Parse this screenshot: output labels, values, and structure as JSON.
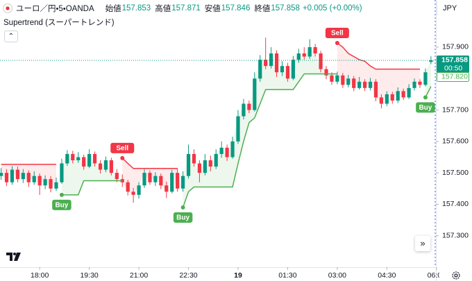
{
  "header": {
    "symbol": "ユーロ／円・5・OANDA",
    "ohlc": [
      {
        "label": "始値",
        "value": "157.853"
      },
      {
        "label": "高値",
        "value": "157.871"
      },
      {
        "label": "安値",
        "value": "157.846"
      },
      {
        "label": "終値",
        "value": "157.858"
      }
    ],
    "change": "+0.005 (+0.00%)"
  },
  "indicator": "Supertrend (スーパートレンド)",
  "currency": "JPY",
  "chart_data": {
    "type": "candlestick",
    "up_color": "#089981",
    "down_color": "#f23645",
    "xlim": [
      -72,
      719
    ],
    "ylim": [
      157.2,
      158.05
    ],
    "xticks": [
      {
        "value": 0,
        "label": "18:00"
      },
      {
        "value": 90,
        "label": "19:30"
      },
      {
        "value": 180,
        "label": "21:00"
      },
      {
        "value": 270,
        "label": "22:30"
      },
      {
        "value": 360,
        "label": "19"
      },
      {
        "value": 450,
        "label": "01:30"
      },
      {
        "value": 540,
        "label": "03:00"
      },
      {
        "value": 630,
        "label": "04:30"
      },
      {
        "value": 720,
        "label": "06:00"
      }
    ],
    "yticks": [
      {
        "value": 157.3,
        "label": "157.300"
      },
      {
        "value": 157.4,
        "label": "157.400"
      },
      {
        "value": 157.5,
        "label": "157.500"
      },
      {
        "value": 157.6,
        "label": "157.600"
      },
      {
        "value": 157.7,
        "label": "157.700"
      },
      {
        "value": 157.8,
        "label": "157.800"
      },
      {
        "value": 157.9,
        "label": "157.900"
      }
    ],
    "x": [
      -70,
      -60,
      -50,
      -40,
      -30,
      -20,
      -10,
      0,
      10,
      20,
      30,
      40,
      50,
      60,
      70,
      80,
      90,
      100,
      110,
      120,
      130,
      140,
      150,
      160,
      170,
      180,
      190,
      200,
      210,
      220,
      230,
      240,
      250,
      260,
      270,
      280,
      290,
      300,
      310,
      320,
      330,
      340,
      350,
      360,
      370,
      380,
      390,
      400,
      410,
      420,
      430,
      440,
      450,
      460,
      470,
      480,
      490,
      500,
      510,
      520,
      530,
      540,
      550,
      560,
      570,
      580,
      590,
      600,
      610,
      620,
      630,
      640,
      650,
      660,
      670,
      680,
      690,
      700,
      710
    ],
    "open": [
      157.49,
      157.5,
      157.47,
      157.51,
      157.48,
      157.5,
      157.47,
      157.49,
      157.46,
      157.48,
      157.45,
      157.47,
      157.53,
      157.56,
      157.54,
      157.55,
      157.52,
      157.56,
      157.53,
      157.51,
      157.54,
      157.5,
      157.48,
      157.47,
      157.44,
      157.43,
      157.46,
      157.5,
      157.47,
      157.49,
      157.46,
      157.44,
      157.5,
      157.45,
      157.49,
      157.56,
      157.53,
      157.5,
      157.54,
      157.52,
      157.56,
      157.58,
      157.55,
      157.6,
      157.68,
      157.72,
      157.7,
      157.8,
      157.86,
      157.84,
      157.88,
      157.82,
      157.84,
      157.8,
      157.86,
      157.88,
      157.87,
      157.9,
      157.88,
      157.83,
      157.81,
      157.79,
      157.81,
      157.78,
      157.8,
      157.77,
      157.79,
      157.77,
      157.79,
      157.74,
      157.72,
      157.75,
      157.73,
      157.76,
      157.74,
      157.77,
      157.79,
      157.78,
      157.853
    ],
    "high": [
      157.515,
      157.512,
      157.522,
      157.52,
      157.512,
      157.508,
      157.505,
      157.498,
      157.492,
      157.49,
      157.485,
      157.545,
      157.572,
      157.57,
      157.566,
      157.558,
      157.575,
      157.568,
      157.54,
      157.552,
      157.548,
      157.512,
      157.495,
      157.478,
      157.452,
      157.47,
      157.512,
      157.508,
      157.502,
      157.498,
      157.472,
      157.51,
      157.515,
      157.505,
      157.59,
      157.575,
      157.54,
      157.56,
      157.555,
      157.575,
      157.6,
      157.59,
      157.615,
      157.7,
      157.735,
      157.73,
      157.82,
      157.875,
      157.93,
      157.9,
      157.89,
      157.855,
      157.85,
      157.872,
      157.895,
      157.9,
      157.925,
      157.91,
      157.888,
      157.84,
      157.82,
      157.822,
      157.818,
      157.812,
      157.808,
      157.805,
      157.798,
      157.802,
      157.798,
      157.75,
      157.76,
      157.758,
      157.772,
      157.768,
      157.782,
      157.8,
      157.798,
      157.832,
      157.871
    ],
    "low": [
      157.478,
      157.458,
      157.462,
      157.47,
      157.468,
      157.455,
      157.462,
      157.43,
      157.448,
      157.438,
      157.442,
      157.465,
      157.522,
      157.53,
      157.532,
      157.51,
      157.515,
      157.52,
      157.498,
      157.502,
      157.492,
      157.47,
      157.455,
      157.428,
      157.405,
      157.418,
      157.452,
      157.462,
      157.458,
      157.448,
      157.42,
      157.435,
      157.44,
      157.44,
      157.482,
      157.52,
      157.47,
      157.492,
      157.505,
      157.512,
      157.548,
      157.538,
      157.545,
      157.592,
      157.67,
      157.69,
      157.695,
      157.79,
      157.83,
      157.832,
      157.805,
      157.808,
      157.79,
      157.795,
      157.85,
      157.86,
      157.862,
      157.87,
      157.82,
      157.798,
      157.78,
      157.782,
      157.77,
      157.772,
      157.76,
      157.765,
      157.76,
      157.762,
      157.728,
      157.705,
      157.712,
      157.72,
      157.722,
      157.732,
      157.735,
      157.762,
      157.77,
      157.775,
      157.846
    ],
    "close": [
      157.5,
      157.47,
      157.51,
      157.48,
      157.5,
      157.47,
      157.49,
      157.46,
      157.48,
      157.45,
      157.47,
      157.53,
      157.56,
      157.54,
      157.55,
      157.52,
      157.56,
      157.53,
      157.51,
      157.54,
      157.5,
      157.48,
      157.47,
      157.44,
      157.43,
      157.46,
      157.5,
      157.47,
      157.49,
      157.46,
      157.44,
      157.5,
      157.45,
      157.49,
      157.56,
      157.53,
      157.5,
      157.54,
      157.52,
      157.56,
      157.58,
      157.55,
      157.6,
      157.68,
      157.72,
      157.7,
      157.8,
      157.86,
      157.84,
      157.88,
      157.82,
      157.84,
      157.8,
      157.86,
      157.88,
      157.87,
      157.9,
      157.88,
      157.83,
      157.81,
      157.79,
      157.81,
      157.78,
      157.8,
      157.77,
      157.79,
      157.77,
      157.79,
      157.74,
      157.72,
      157.75,
      157.73,
      157.76,
      157.74,
      157.77,
      157.79,
      157.78,
      157.82,
      157.858
    ],
    "series": [
      {
        "color": "#4caf50",
        "fill": "rgba(76,175,80,0.10)",
        "position": "below",
        "values": [
          null,
          null,
          null,
          null,
          null,
          null,
          null,
          null,
          null,
          null,
          null,
          157.43,
          157.43,
          157.43,
          157.43,
          157.475,
          157.475,
          157.475,
          157.475,
          157.475,
          157.475,
          157.475,
          157.475,
          null,
          null,
          null,
          null,
          null,
          null,
          null,
          null,
          null,
          null,
          157.39,
          157.44,
          157.455,
          157.455,
          157.455,
          157.455,
          157.455,
          157.455,
          157.455,
          157.455,
          157.53,
          157.6,
          157.66,
          157.675,
          157.72,
          157.765,
          157.765,
          157.765,
          157.765,
          157.765,
          157.765,
          157.79,
          157.815,
          157.815,
          157.815,
          157.815,
          157.815,
          157.815,
          157.815,
          null,
          null,
          null,
          null,
          null,
          null,
          null,
          null,
          null,
          null,
          null,
          null,
          null,
          null,
          null,
          157.74,
          157.775
        ],
        "signals": [
          {
            "x": 40,
            "label": "Buy"
          },
          {
            "x": 260,
            "label": "Buy"
          },
          {
            "x": 700,
            "label": "Buy"
          }
        ]
      },
      {
        "color": "#f23645",
        "fill": "rgba(242,54,69,0.10)",
        "position": "above",
        "values": [
          157.527,
          157.527,
          157.527,
          157.527,
          157.527,
          157.527,
          157.527,
          157.527,
          157.527,
          157.527,
          157.527,
          null,
          null,
          null,
          null,
          null,
          null,
          null,
          null,
          null,
          null,
          null,
          157.547,
          157.53,
          157.514,
          157.514,
          157.514,
          157.514,
          157.514,
          157.514,
          157.514,
          157.514,
          157.514,
          null,
          null,
          null,
          null,
          null,
          null,
          null,
          null,
          null,
          null,
          null,
          null,
          null,
          null,
          null,
          null,
          null,
          null,
          null,
          null,
          null,
          null,
          null,
          null,
          null,
          null,
          null,
          null,
          157.913,
          157.9,
          157.88,
          157.87,
          157.86,
          157.855,
          157.84,
          157.83,
          157.83,
          157.83,
          157.83,
          157.83,
          157.83,
          157.83,
          157.83,
          157.83,
          null,
          null
        ],
        "signals": [
          {
            "x": 150,
            "label": "Sell"
          },
          {
            "x": 540,
            "label": "Sell"
          }
        ]
      }
    ],
    "last_price": 157.858,
    "countdown": "00:50",
    "trend_price": {
      "value": 157.82,
      "label": "157.820"
    }
  }
}
